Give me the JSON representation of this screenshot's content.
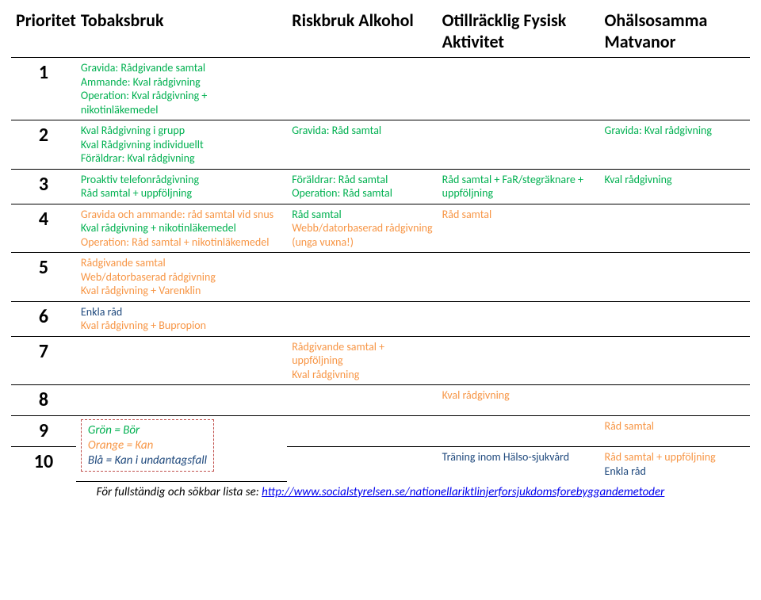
{
  "colors": {
    "green": "#00b050",
    "orange": "#f79646",
    "blue": "#1f497d",
    "black": "#000000",
    "legend_border": "#c0504d"
  },
  "headers": {
    "prioritet": "Prioritet",
    "tobak": "Tobaksbruk",
    "alkohol": "Riskbruk Alkohol",
    "fysisk": "Otillräcklig Fysisk Aktivitet",
    "mat": "Ohälsosamma Matvanor"
  },
  "rows": {
    "r1": {
      "prio": "1",
      "tobak": [
        {
          "t": "Gravida: Rådgivande samtal",
          "c": "green"
        },
        {
          "t": "Ammande: Kval rådgivning",
          "c": "green"
        },
        {
          "t": "Operation: Kval rådgivning + nikotinläkemedel",
          "c": "green"
        }
      ]
    },
    "r2": {
      "prio": "2",
      "tobak": [
        {
          "t": "Kval Rådgivning i grupp",
          "c": "green"
        },
        {
          "t": "Kval Rådgivning individuellt",
          "c": "green"
        },
        {
          "t": "Föräldrar: Kval rådgivning",
          "c": "green"
        }
      ],
      "alkohol": [
        {
          "t": "Gravida: Råd samtal",
          "c": "green"
        }
      ],
      "mat": [
        {
          "t": "Gravida: Kval rådgivning",
          "c": "green"
        }
      ]
    },
    "r3": {
      "prio": "3",
      "tobak": [
        {
          "t": "Proaktiv telefonrådgivning",
          "c": "green"
        },
        {
          "t": "Råd samtal + uppföljning",
          "c": "green"
        }
      ],
      "alkohol": [
        {
          "t": "Föräldrar: Råd samtal",
          "c": "green"
        },
        {
          "t": "Operation: Råd samtal",
          "c": "green"
        }
      ],
      "fysisk": [
        {
          "t": "Råd samtal + FaR/stegräknare + uppföljning",
          "c": "green"
        }
      ],
      "mat": [
        {
          "t": "Kval rådgivning",
          "c": "green"
        }
      ]
    },
    "r4": {
      "prio": "4",
      "tobak": [
        {
          "t": "Gravida och ammande: råd samtal vid snus",
          "c": "orange"
        },
        {
          "t": "Kval rådgivning + nikotinläkemedel",
          "c": "green"
        },
        {
          "t": "Operation: Råd samtal + nikotinläkemedel",
          "c": "orange"
        }
      ],
      "alkohol": [
        {
          "t": "Råd samtal",
          "c": "green"
        },
        {
          "t": "Webb/datorbaserad rådgivning (unga vuxna!)",
          "c": "orange"
        }
      ],
      "fysisk": [
        {
          "t": "Råd samtal",
          "c": "orange"
        }
      ]
    },
    "r5": {
      "prio": "5",
      "tobak": [
        {
          "t": "Rådgivande samtal",
          "c": "orange"
        },
        {
          "t": "Web/datorbaserad rådgivning",
          "c": "orange"
        },
        {
          "t": "Kval rådgivning + Varenklin",
          "c": "orange"
        }
      ]
    },
    "r6": {
      "prio": "6",
      "tobak": [
        {
          "t": "Enkla råd",
          "c": "blue"
        },
        {
          "t": "Kval rådgivning + Bupropion",
          "c": "orange"
        }
      ]
    },
    "r7": {
      "prio": "7",
      "alkohol": [
        {
          "t": "Rådgivande samtal + uppföljning",
          "c": "orange"
        },
        {
          "t": "Kval rådgivning",
          "c": "orange"
        }
      ]
    },
    "r8": {
      "prio": "8",
      "fysisk": [
        {
          "t": "Kval rådgivning",
          "c": "orange"
        }
      ]
    },
    "r9": {
      "prio": "9",
      "mat": [
        {
          "t": "Råd samtal",
          "c": "orange"
        }
      ]
    },
    "r10": {
      "prio": "10",
      "fysisk": [
        {
          "t": "Träning inom Hälso-sjukvård",
          "c": "blue"
        }
      ],
      "mat": [
        {
          "t": "Råd samtal + uppföljning",
          "c": "orange"
        },
        {
          "t": "Enkla råd",
          "c": "blue"
        }
      ]
    }
  },
  "legend": {
    "l1": {
      "t": "Grön = Bör",
      "c": "green"
    },
    "l2": {
      "t": "Orange = Kan",
      "c": "orange"
    },
    "l3": {
      "t": "Blå = Kan i undantagsfall",
      "c": "blue"
    }
  },
  "footnote": {
    "prefix": "För fullständig och sökbar lista se: ",
    "link": "http://www.socialstyrelsen.se/nationellariktlinjerforsjukdomsforebyggandemetoder"
  }
}
